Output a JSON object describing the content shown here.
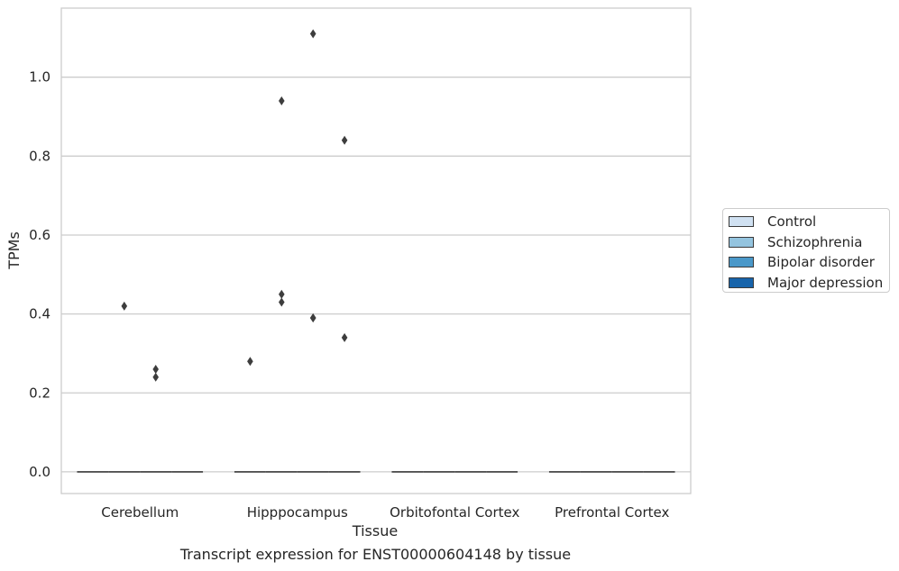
{
  "chart_data": {
    "type": "boxplot",
    "title": "",
    "caption": "Transcript expression for ENST00000604148 by tissue",
    "xlabel": "Tissue",
    "ylabel": "TPMs",
    "ylim": [
      -0.055,
      1.175
    ],
    "yticks": [
      "0.0",
      "0.2",
      "0.4",
      "0.6",
      "0.8",
      "1.0"
    ],
    "grid": true,
    "legend_position": "right",
    "categories": [
      "Cerebellum",
      "Hipppocampus",
      "Orbitofontal Cortex",
      "Prefrontal Cortex"
    ],
    "series": [
      {
        "name": "Control",
        "color": "#d0e1f2",
        "medians": [
          0,
          0,
          0,
          0
        ],
        "outliers": [
          [],
          [
            0.28
          ],
          [],
          []
        ]
      },
      {
        "name": "Schizophrenia",
        "color": "#94c4df",
        "medians": [
          0,
          0,
          0,
          0
        ],
        "outliers": [
          [
            0.42
          ],
          [
            0.45,
            0.43,
            0.94
          ],
          [],
          []
        ]
      },
      {
        "name": "Bipolar disorder",
        "color": "#4a98c9",
        "medians": [
          0,
          0,
          0,
          0
        ],
        "outliers": [
          [
            0.26,
            0.24
          ],
          [
            1.11,
            0.39,
            0.39
          ],
          [],
          []
        ]
      },
      {
        "name": "Major depression",
        "color": "#1764ab",
        "medians": [
          0,
          0,
          0,
          0
        ],
        "outliers": [
          [],
          [
            0.84,
            0.34
          ],
          [],
          []
        ]
      }
    ]
  }
}
